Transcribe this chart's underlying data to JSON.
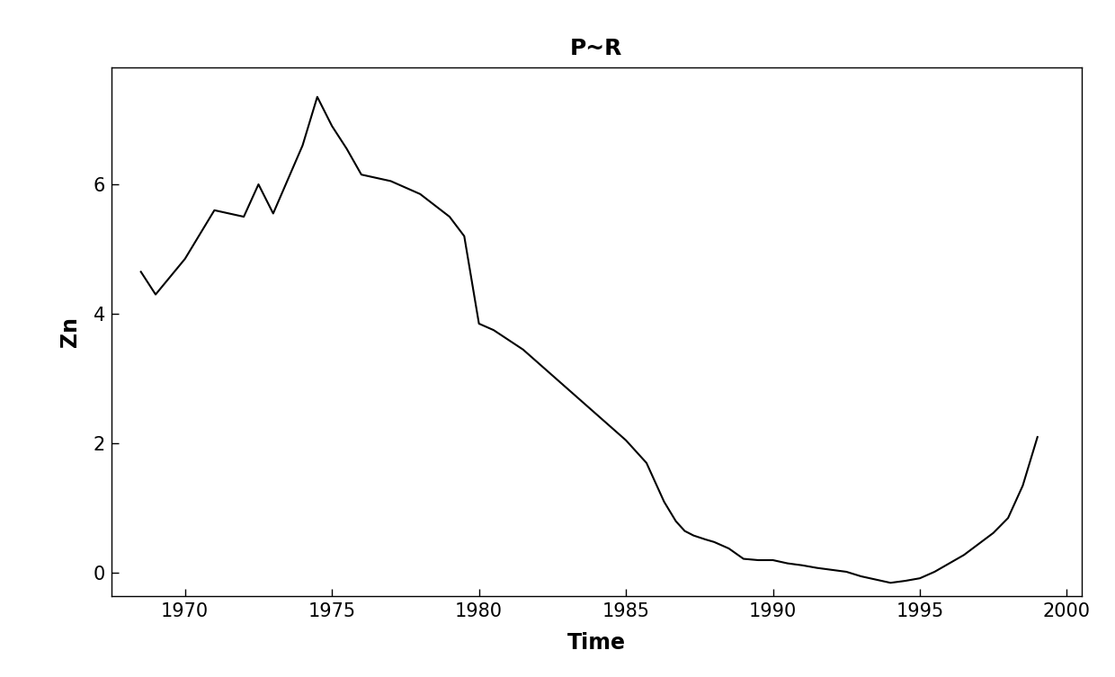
{
  "title": "P~R",
  "xlabel": "Time",
  "ylabel": "Zn",
  "xlim": [
    1967.5,
    2000.5
  ],
  "ylim": [
    -0.35,
    7.8
  ],
  "xticks": [
    1970,
    1975,
    1980,
    1985,
    1990,
    1995,
    2000
  ],
  "yticks": [
    0,
    2,
    4,
    6
  ],
  "line_color": "#000000",
  "background_color": "#ffffff",
  "x": [
    1968.5,
    1969.0,
    1970.0,
    1971.0,
    1972.0,
    1972.5,
    1973.0,
    1974.0,
    1974.5,
    1975.0,
    1975.5,
    1976.0,
    1977.0,
    1978.0,
    1979.0,
    1979.5,
    1980.0,
    1980.5,
    1981.0,
    1981.5,
    1982.0,
    1982.5,
    1983.0,
    1983.5,
    1984.0,
    1984.5,
    1985.0,
    1985.3,
    1985.7,
    1986.0,
    1986.3,
    1986.7,
    1987.0,
    1987.3,
    1987.7,
    1988.0,
    1988.5,
    1989.0,
    1989.5,
    1990.0,
    1990.5,
    1991.0,
    1991.5,
    1992.0,
    1992.5,
    1993.0,
    1993.5,
    1994.0,
    1994.5,
    1995.0,
    1995.5,
    1996.0,
    1996.5,
    1997.0,
    1997.5,
    1998.0,
    1998.5,
    1999.0
  ],
  "y": [
    4.65,
    4.3,
    4.85,
    5.6,
    5.5,
    6.0,
    5.55,
    6.6,
    7.35,
    6.9,
    6.55,
    6.15,
    6.05,
    5.85,
    5.5,
    5.2,
    3.85,
    3.75,
    3.6,
    3.45,
    3.25,
    3.05,
    2.85,
    2.65,
    2.45,
    2.25,
    2.05,
    1.9,
    1.7,
    1.4,
    1.1,
    0.8,
    0.65,
    0.58,
    0.52,
    0.48,
    0.38,
    0.22,
    0.2,
    0.2,
    0.15,
    0.12,
    0.08,
    0.05,
    0.02,
    -0.05,
    -0.1,
    -0.15,
    -0.12,
    -0.08,
    0.02,
    0.15,
    0.28,
    0.45,
    0.62,
    0.85,
    1.35,
    2.1
  ]
}
